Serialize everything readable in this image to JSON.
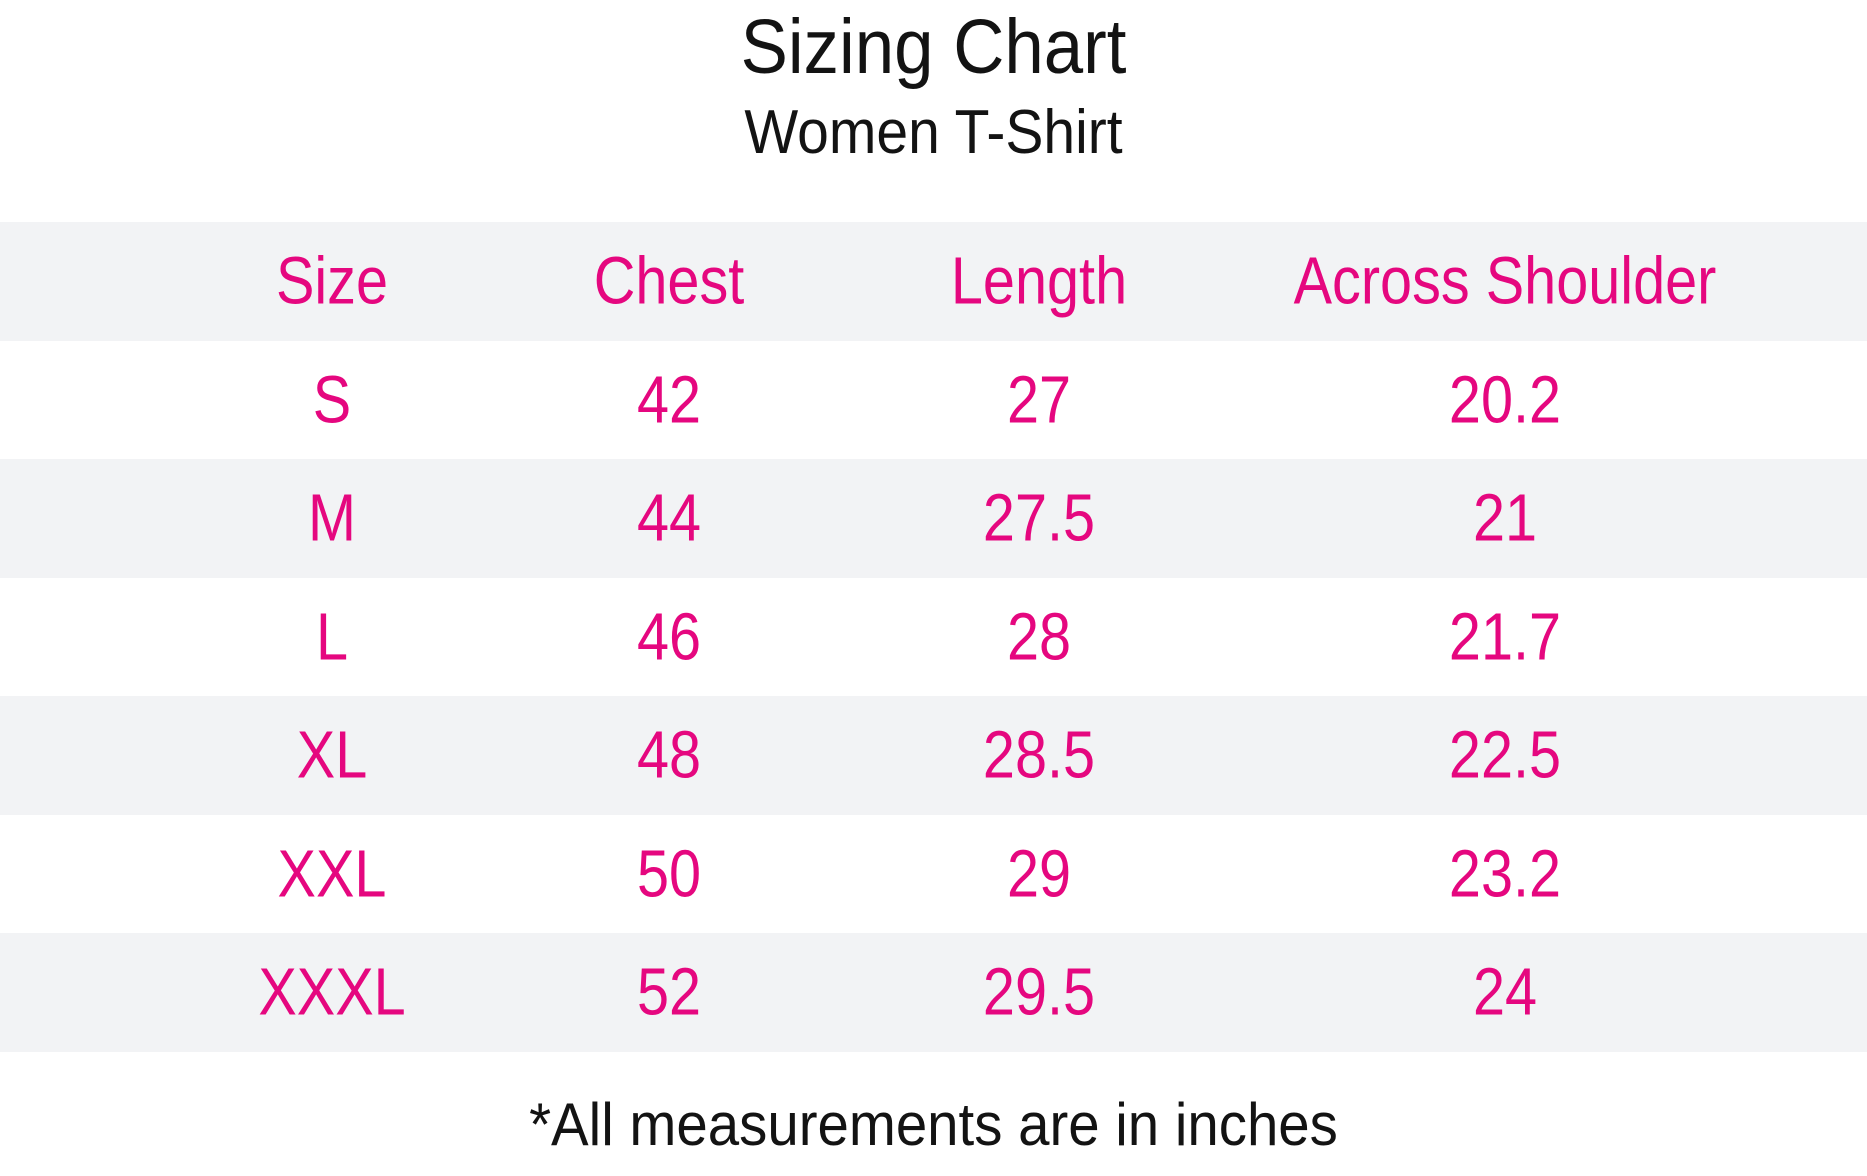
{
  "page": {
    "title": "Sizing Chart",
    "subtitle": "Women T-Shirt",
    "footnote": "*All measurements are in inches"
  },
  "colors": {
    "accent_pink": "#e5077f",
    "stripe_gray": "#f2f3f5",
    "text_black": "#131313",
    "background": "#ffffff"
  },
  "chart_data": {
    "type": "table",
    "title": "Sizing Chart",
    "subtitle": "Women T-Shirt",
    "columns": [
      "Size",
      "Chest",
      "Length",
      "Across Shoulder"
    ],
    "rows": [
      [
        "S",
        42,
        27,
        20.2
      ],
      [
        "M",
        44,
        27.5,
        21
      ],
      [
        "L",
        46,
        28,
        21.7
      ],
      [
        "XL",
        48,
        28.5,
        22.5
      ],
      [
        "XXL",
        50,
        29,
        23.2
      ],
      [
        "XXXL",
        52,
        29.5,
        24
      ]
    ],
    "footnote": "*All measurements are in inches",
    "layout_hints": {
      "striped_rows": true,
      "stripe_pattern": "header and even data rows gray, others white",
      "text_alignment": "center",
      "header_style": "same pink as body cells"
    }
  }
}
